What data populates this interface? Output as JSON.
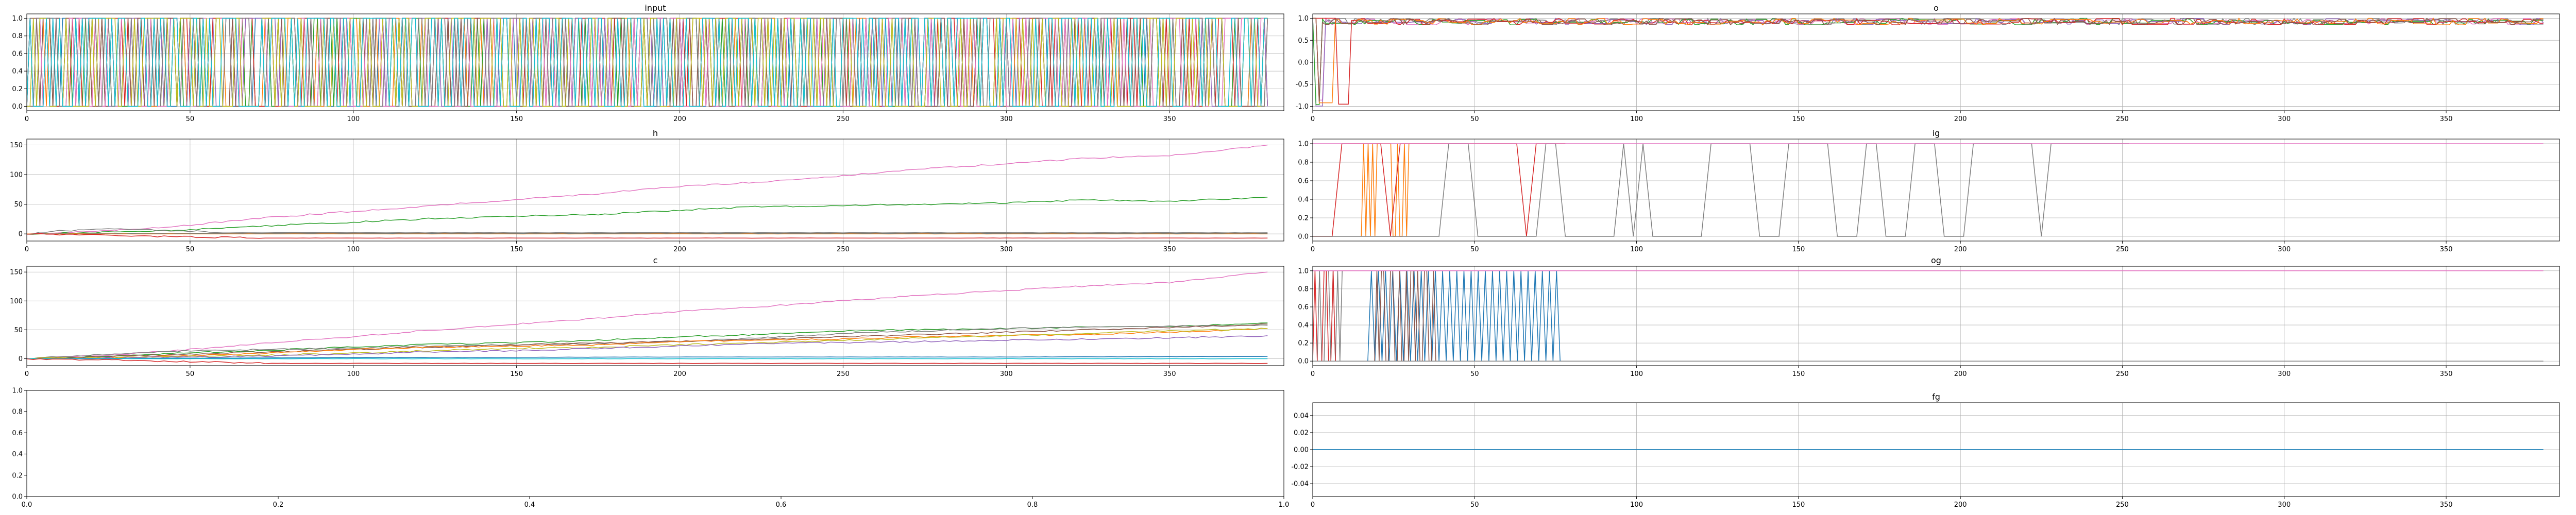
{
  "chart_data": [
    {
      "id": "input",
      "type": "line",
      "title": "input",
      "xlim": [
        0,
        385
      ],
      "ylim": [
        -0.05,
        1.05
      ],
      "xticks": [
        0,
        50,
        100,
        150,
        200,
        250,
        300,
        350
      ],
      "xtick_labels": [
        "0",
        "50",
        "100",
        "150",
        "200",
        "250",
        "300",
        "350"
      ],
      "yticks": [
        0,
        0.2,
        0.4,
        0.6,
        0.8,
        1.0
      ],
      "ytick_labels": [
        "0.0",
        "0.2",
        "0.4",
        "0.6",
        "0.8",
        "1.0"
      ],
      "grid": true,
      "series": [
        {
          "color": "#1f77b4",
          "pattern": "binary-pulses",
          "x": [
            0,
            380
          ],
          "y_levels": [
            0,
            1
          ]
        },
        {
          "color": "#ff7f0e",
          "pattern": "binary-pulses",
          "x": [
            0,
            380
          ],
          "y_levels": [
            0,
            1
          ]
        },
        {
          "color": "#2ca02c",
          "pattern": "binary-pulses",
          "x": [
            0,
            380
          ],
          "y_levels": [
            0,
            1
          ]
        },
        {
          "color": "#d62728",
          "pattern": "binary-pulses",
          "x": [
            0,
            380
          ],
          "y_levels": [
            0,
            1
          ]
        },
        {
          "color": "#9467bd",
          "pattern": "binary-pulses",
          "x": [
            0,
            380
          ],
          "y_levels": [
            0,
            1
          ]
        },
        {
          "color": "#8c564b",
          "pattern": "binary-pulses",
          "x": [
            0,
            380
          ],
          "y_levels": [
            0,
            1
          ]
        },
        {
          "color": "#e377c2",
          "pattern": "binary-pulses",
          "x": [
            0,
            380
          ],
          "y_levels": [
            0,
            1
          ]
        },
        {
          "color": "#7f7f7f",
          "pattern": "binary-pulses",
          "x": [
            0,
            380
          ],
          "y_levels": [
            0,
            1
          ]
        },
        {
          "color": "#bcbd22",
          "pattern": "binary-pulses",
          "x": [
            0,
            380
          ],
          "y_levels": [
            0,
            1
          ]
        },
        {
          "color": "#17becf",
          "pattern": "binary-pulses",
          "x": [
            0,
            380
          ],
          "y_levels": [
            0,
            1
          ]
        }
      ]
    },
    {
      "id": "o",
      "type": "line",
      "title": "o",
      "xlim": [
        0,
        385
      ],
      "ylim": [
        -1.1,
        1.1
      ],
      "xticks": [
        0,
        50,
        100,
        150,
        200,
        250,
        300,
        350
      ],
      "xtick_labels": [
        "0",
        "50",
        "100",
        "150",
        "200",
        "250",
        "300",
        "350"
      ],
      "yticks": [
        -1.0,
        -0.5,
        0.0,
        0.5,
        1.0
      ],
      "ytick_labels": [
        "-1.0",
        "-0.5",
        "0.0",
        "0.5",
        "1.0"
      ],
      "grid": true,
      "series": [
        {
          "color": "#7f7f7f",
          "pattern": "saturated-switching",
          "x": [
            0,
            380
          ],
          "y_levels": [
            -1,
            1
          ]
        },
        {
          "color": "#e377c2",
          "pattern": "saturated-switching",
          "x": [
            0,
            380
          ],
          "y_levels": [
            -1,
            1
          ]
        },
        {
          "color": "#9467bd",
          "pattern": "saturated-switching",
          "x": [
            0,
            380
          ],
          "y_levels": [
            -1,
            1
          ]
        },
        {
          "color": "#2ca02c",
          "pattern": "saturated-switching",
          "x": [
            0,
            380
          ],
          "y_levels": [
            -1,
            1
          ]
        },
        {
          "color": "#d62728",
          "pattern": "saturated-switching",
          "x": [
            0,
            380
          ],
          "y_levels": [
            -1,
            1
          ]
        },
        {
          "color": "#ff7f0e",
          "pattern": "saturated-switching",
          "x": [
            0,
            380
          ],
          "y_levels": [
            -1,
            1
          ]
        },
        {
          "color": "#8c564b",
          "pattern": "saturated-switching",
          "x": [
            0,
            380
          ],
          "y_levels": [
            -1,
            1
          ]
        }
      ]
    },
    {
      "id": "h",
      "type": "line",
      "title": "h",
      "xlim": [
        0,
        385
      ],
      "ylim": [
        -12,
        160
      ],
      "xticks": [
        0,
        50,
        100,
        150,
        200,
        250,
        300,
        350
      ],
      "xtick_labels": [
        "0",
        "50",
        "100",
        "150",
        "200",
        "250",
        "300",
        "350"
      ],
      "yticks": [
        0,
        50,
        100,
        150
      ],
      "ytick_labels": [
        "0",
        "50",
        "100",
        "150"
      ],
      "grid": true,
      "series": [
        {
          "color": "#e377c2",
          "x": [
            0,
            25,
            50,
            75,
            100,
            125,
            150,
            175,
            200,
            225,
            250,
            275,
            300,
            325,
            350,
            380
          ],
          "y": [
            0,
            5,
            15,
            28,
            38,
            48,
            58,
            68,
            80,
            88,
            98,
            110,
            118,
            128,
            132,
            150
          ]
        },
        {
          "color": "#2ca02c",
          "x": [
            0,
            25,
            50,
            75,
            100,
            125,
            150,
            175,
            200,
            225,
            250,
            275,
            300,
            325,
            350,
            380
          ],
          "y": [
            0,
            3,
            7,
            14,
            20,
            26,
            30,
            33,
            40,
            46,
            48,
            50,
            52,
            58,
            55,
            62
          ]
        },
        {
          "color": "#7f7f7f",
          "x": [
            0,
            10,
            25,
            40,
            60,
            100,
            200,
            300,
            380
          ],
          "y": [
            0,
            5,
            8,
            6,
            3,
            2,
            2,
            2,
            2
          ]
        },
        {
          "color": "#1f77b4",
          "x": [
            0,
            50,
            100,
            200,
            300,
            380
          ],
          "y": [
            0,
            1,
            1,
            1,
            1,
            1
          ]
        },
        {
          "color": "#ff7f0e",
          "x": [
            0,
            50,
            100,
            200,
            300,
            380
          ],
          "y": [
            0,
            0,
            0,
            0,
            0,
            0
          ]
        },
        {
          "color": "#d62728",
          "x": [
            0,
            20,
            50,
            75,
            100,
            200,
            300,
            380
          ],
          "y": [
            0,
            -2,
            -5,
            -7,
            -7,
            -7,
            -7,
            -7
          ]
        }
      ]
    },
    {
      "id": "ig",
      "type": "line",
      "title": "ig",
      "xlim": [
        0,
        385
      ],
      "ylim": [
        -0.05,
        1.05
      ],
      "xticks": [
        0,
        50,
        100,
        150,
        200,
        250,
        300,
        350
      ],
      "xtick_labels": [
        "0",
        "50",
        "100",
        "150",
        "200",
        "250",
        "300",
        "350"
      ],
      "yticks": [
        0,
        0.2,
        0.4,
        0.6,
        0.8,
        1.0
      ],
      "ytick_labels": [
        "0.0",
        "0.2",
        "0.4",
        "0.6",
        "0.8",
        "1.0"
      ],
      "grid": true,
      "series": [
        {
          "color": "#ff7f0e",
          "pattern": "dense-switching",
          "x": [
            15,
            30
          ],
          "y_levels": [
            0,
            1
          ]
        },
        {
          "color": "#d62728",
          "pattern": "sparse-switching",
          "x": [
            0,
            78
          ],
          "y_levels": [
            0,
            1
          ]
        },
        {
          "color": "#7f7f7f",
          "pattern": "sparse-switching",
          "x": [
            0,
            253
          ],
          "y_levels": [
            0,
            1
          ]
        },
        {
          "color": "#e377c2",
          "x": [
            0,
            380
          ],
          "y": [
            1,
            1
          ]
        }
      ]
    },
    {
      "id": "c",
      "type": "line",
      "title": "c",
      "xlim": [
        0,
        385
      ],
      "ylim": [
        -12,
        160
      ],
      "xticks": [
        0,
        50,
        100,
        150,
        200,
        250,
        300,
        350
      ],
      "xtick_labels": [
        "0",
        "50",
        "100",
        "150",
        "200",
        "250",
        "300",
        "350"
      ],
      "yticks": [
        0,
        50,
        100,
        150
      ],
      "ytick_labels": [
        "0",
        "50",
        "100",
        "150"
      ],
      "grid": true,
      "series": [
        {
          "color": "#e377c2",
          "x": [
            0,
            25,
            50,
            75,
            100,
            125,
            150,
            175,
            200,
            225,
            250,
            275,
            300,
            325,
            350,
            380
          ],
          "y": [
            0,
            6,
            16,
            28,
            38,
            50,
            60,
            70,
            82,
            90,
            100,
            110,
            118,
            126,
            132,
            150
          ]
        },
        {
          "color": "#2ca02c",
          "x": [
            0,
            25,
            50,
            75,
            100,
            125,
            150,
            175,
            200,
            225,
            250,
            275,
            300,
            325,
            350,
            380
          ],
          "y": [
            0,
            5,
            10,
            15,
            20,
            25,
            28,
            32,
            38,
            42,
            48,
            50,
            52,
            55,
            56,
            62
          ]
        },
        {
          "color": "#7f7f7f",
          "x": [
            0,
            25,
            50,
            75,
            100,
            125,
            150,
            175,
            200,
            225,
            250,
            275,
            300,
            325,
            350,
            380
          ],
          "y": [
            0,
            8,
            14,
            16,
            18,
            22,
            24,
            26,
            30,
            36,
            44,
            48,
            52,
            55,
            56,
            58
          ]
        },
        {
          "color": "#8c564b",
          "x": [
            0,
            25,
            50,
            75,
            100,
            125,
            150,
            175,
            200,
            225,
            250,
            275,
            300,
            325,
            350,
            380
          ],
          "y": [
            0,
            4,
            8,
            12,
            16,
            20,
            24,
            27,
            30,
            34,
            38,
            42,
            46,
            50,
            54,
            60
          ]
        },
        {
          "color": "#ff7f0e",
          "x": [
            0,
            25,
            50,
            75,
            100,
            125,
            150,
            175,
            200,
            225,
            250,
            275,
            300,
            325,
            350,
            380
          ],
          "y": [
            0,
            2,
            5,
            10,
            16,
            20,
            22,
            24,
            30,
            32,
            34,
            38,
            40,
            42,
            46,
            52
          ]
        },
        {
          "color": "#bcbd22",
          "x": [
            0,
            25,
            50,
            75,
            100,
            125,
            150,
            175,
            200,
            225,
            250,
            275,
            300,
            325,
            350,
            380
          ],
          "y": [
            0,
            2,
            4,
            6,
            10,
            14,
            18,
            20,
            24,
            28,
            32,
            36,
            40,
            44,
            48,
            52
          ]
        },
        {
          "color": "#9467bd",
          "x": [
            0,
            25,
            50,
            75,
            100,
            125,
            150,
            175,
            200,
            225,
            250,
            275,
            300,
            325,
            350,
            380
          ],
          "y": [
            0,
            1,
            3,
            5,
            8,
            12,
            14,
            18,
            22,
            26,
            28,
            30,
            32,
            34,
            36,
            40
          ]
        },
        {
          "color": "#1f77b4",
          "x": [
            0,
            50,
            100,
            200,
            300,
            380
          ],
          "y": [
            0,
            1,
            2,
            3,
            3,
            4
          ]
        },
        {
          "color": "#17becf",
          "x": [
            0,
            50,
            100,
            200,
            300,
            380
          ],
          "y": [
            0,
            0,
            0,
            0,
            0,
            0
          ]
        },
        {
          "color": "#d62728",
          "x": [
            0,
            20,
            50,
            75,
            100,
            200,
            300,
            380
          ],
          "y": [
            0,
            -2,
            -5,
            -8,
            -8,
            -8,
            -8,
            -8
          ]
        }
      ]
    },
    {
      "id": "og",
      "type": "line",
      "title": "og",
      "xlim": [
        0,
        385
      ],
      "ylim": [
        -0.05,
        1.05
      ],
      "xticks": [
        0,
        50,
        100,
        150,
        200,
        250,
        300,
        350
      ],
      "xtick_labels": [
        "0",
        "50",
        "100",
        "150",
        "200",
        "250",
        "300",
        "350"
      ],
      "yticks": [
        0,
        0.2,
        0.4,
        0.6,
        0.8,
        1.0
      ],
      "ytick_labels": [
        "0.0",
        "0.2",
        "0.4",
        "0.6",
        "0.8",
        "1.0"
      ],
      "grid": true,
      "series": [
        {
          "color": "#7f7f7f",
          "pattern": "dense-switching",
          "x": [
            0,
            10
          ],
          "y_levels": [
            0,
            1
          ]
        },
        {
          "color": "#d62728",
          "pattern": "dense-switching",
          "x": [
            0,
            10
          ],
          "y_levels": [
            0,
            1
          ]
        },
        {
          "color": "#1f77b4",
          "pattern": "oscillation",
          "x": [
            17,
            77
          ],
          "y_levels": [
            0,
            1
          ]
        },
        {
          "color": "#8c564b",
          "pattern": "dense-switching",
          "x": [
            17,
            40
          ],
          "y_levels": [
            0,
            1
          ]
        },
        {
          "color": "#7f7f7f",
          "x": [
            0,
            380
          ],
          "y": [
            0,
            0
          ]
        },
        {
          "color": "#e377c2",
          "x": [
            0,
            380
          ],
          "y": [
            1,
            1
          ]
        }
      ]
    },
    {
      "id": "empty",
      "type": "line",
      "title": "",
      "xlim": [
        0,
        1
      ],
      "ylim": [
        0,
        1
      ],
      "xticks": [
        0,
        0.2,
        0.4,
        0.6,
        0.8,
        1.0
      ],
      "xtick_labels": [
        "0.0",
        "0.2",
        "0.4",
        "0.6",
        "0.8",
        "1.0"
      ],
      "yticks": [
        0,
        0.2,
        0.4,
        0.6,
        0.8,
        1.0
      ],
      "ytick_labels": [
        "0.0",
        "0.2",
        "0.4",
        "0.6",
        "0.8",
        "1.0"
      ],
      "grid": false,
      "series": []
    },
    {
      "id": "fg",
      "type": "line",
      "title": "fg",
      "xlim": [
        0,
        385
      ],
      "ylim": [
        -0.055,
        0.055
      ],
      "xticks": [
        0,
        50,
        100,
        150,
        200,
        250,
        300,
        350
      ],
      "xtick_labels": [
        "0",
        "50",
        "100",
        "150",
        "200",
        "250",
        "300",
        "350"
      ],
      "yticks": [
        -0.04,
        -0.02,
        0.0,
        0.02,
        0.04
      ],
      "ytick_labels": [
        "-0.04",
        "-0.02",
        "0.00",
        "0.02",
        "0.04"
      ],
      "grid": true,
      "series": [
        {
          "color": "#17becf",
          "x": [
            0,
            380
          ],
          "y": [
            0,
            0
          ]
        },
        {
          "color": "#1f77b4",
          "x": [
            0,
            380
          ],
          "y": [
            0,
            0
          ]
        }
      ]
    }
  ]
}
